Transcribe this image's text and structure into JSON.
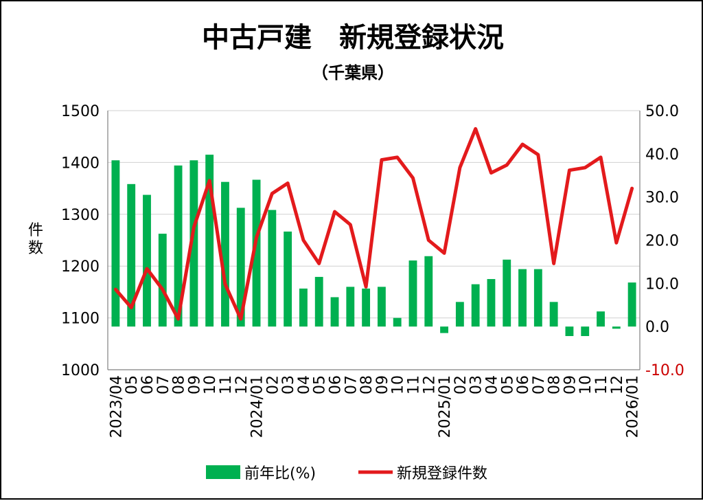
{
  "chart_data": {
    "type": "bar+line",
    "title": "中古戸建　新規登録状況",
    "subtitle": "（千葉県）",
    "ylabel_left": "件数",
    "ylim_left": [
      1000,
      1500
    ],
    "yticks_left": [
      "1000",
      "1100",
      "1200",
      "1300",
      "1400",
      "1500"
    ],
    "ylim_right": [
      -10,
      50
    ],
    "yticks_right": [
      "-10.0",
      "0.0",
      "10.0",
      "20.0",
      "30.0",
      "40.0",
      "50.0"
    ],
    "categories": [
      "2023/04",
      "05",
      "06",
      "07",
      "08",
      "09",
      "10",
      "11",
      "12",
      "2024/01",
      "02",
      "03",
      "04",
      "05",
      "06",
      "07",
      "08",
      "09",
      "10",
      "11",
      "12",
      "2025/01",
      "02",
      "03",
      "04",
      "05",
      "06",
      "07",
      "08",
      "09",
      "10",
      "11",
      "12",
      "2026/01"
    ],
    "series": [
      {
        "name": "前年比(%)",
        "type": "bar",
        "axis": "right",
        "color": "#00b050",
        "values": [
          38.5,
          33,
          30.5,
          21.5,
          37.3,
          38.5,
          39.8,
          33.5,
          27.5,
          34,
          27,
          22,
          8.8,
          11.5,
          6.8,
          9.2,
          8.8,
          9.2,
          2,
          15.3,
          16.3,
          -1.5,
          5.7,
          9.8,
          11,
          15.5,
          13.3,
          13.3,
          5.7,
          -2.2,
          -2.2,
          3.5,
          -0.5,
          10.2
        ]
      },
      {
        "name": "新規登録件数",
        "type": "line",
        "axis": "left",
        "color": "#e31a1c",
        "values": [
          1155,
          1120,
          1195,
          1155,
          1098,
          1275,
          1365,
          1165,
          1098,
          1255,
          1340,
          1360,
          1250,
          1205,
          1305,
          1280,
          1160,
          1405,
          1410,
          1370,
          1250,
          1225,
          1390,
          1465,
          1380,
          1395,
          1435,
          1415,
          1205,
          1385,
          1390,
          1410,
          1245,
          1350
        ]
      }
    ],
    "legend_position": "bottom",
    "grid": true
  },
  "legend": {
    "bar_label": "前年比(%)",
    "line_label": "新規登録件数"
  },
  "colors": {
    "bar": "#00b050",
    "line": "#e31a1c",
    "negative_tick": "#cc0000",
    "grid": "#d0d0d0"
  }
}
